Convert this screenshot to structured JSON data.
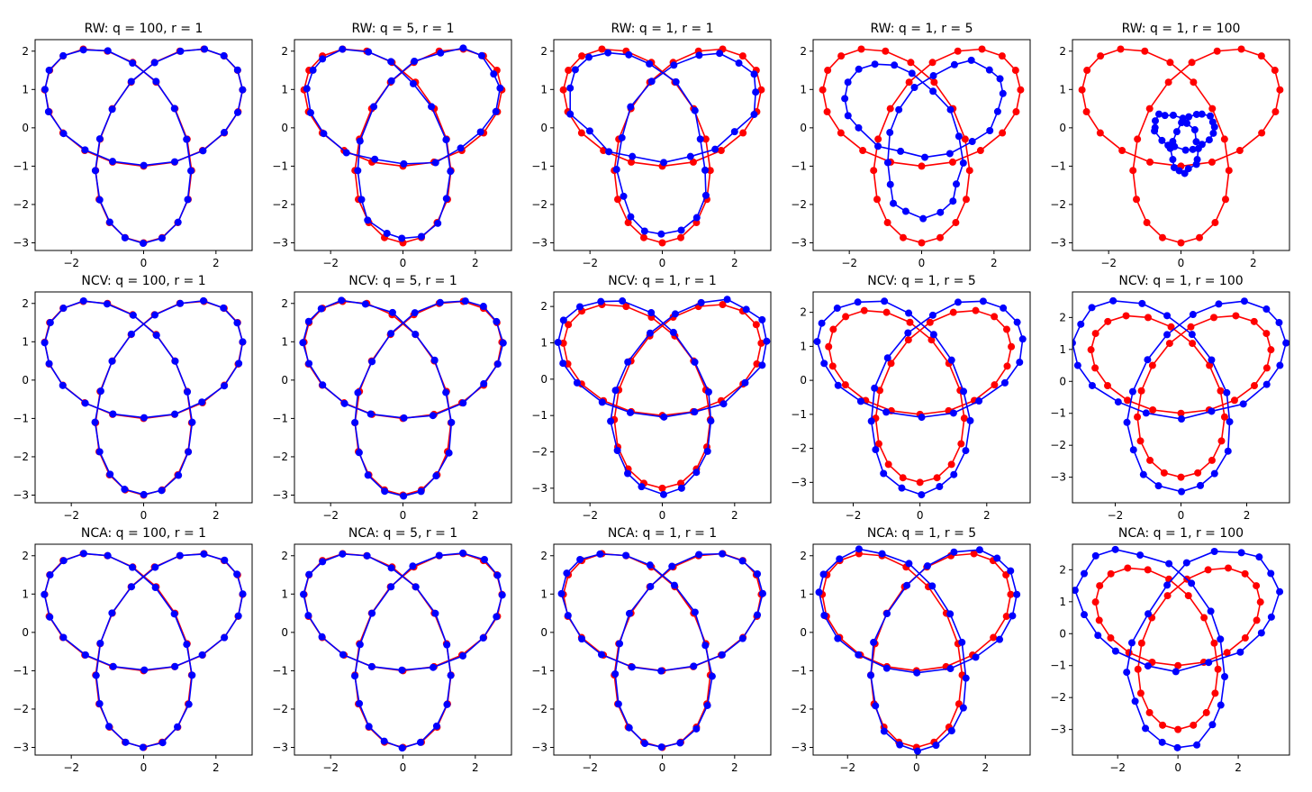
{
  "chart_data": {
    "type": "line",
    "subtype": "trajectory-comparison-grid",
    "layout": {
      "rows": 3,
      "cols": 5
    },
    "grid": false,
    "legend": "none",
    "colors": {
      "truth": "#ff0000",
      "estimate": "#0000ff"
    },
    "markers": "filled-circle",
    "curve": "trefoil",
    "panels": [
      {
        "title": "RW: q = 100, r = 1",
        "model": "RW",
        "q": 100,
        "r": 1,
        "xlim": [
          -3.0,
          3.0
        ],
        "ylim": [
          -3.2,
          2.3
        ],
        "xticks": [
          -2,
          0,
          2
        ],
        "yticks": [
          -3,
          -2,
          -1,
          0,
          1,
          2
        ],
        "estimate": {
          "scale": 1.0,
          "shift_x": 0.0,
          "shift_y": 0.0,
          "noise": 0.02
        }
      },
      {
        "title": "RW: q = 5, r = 1",
        "model": "RW",
        "q": 5,
        "r": 1,
        "xlim": [
          -3.0,
          3.0
        ],
        "ylim": [
          -3.2,
          2.3
        ],
        "xticks": [
          -2,
          0,
          2
        ],
        "yticks": [
          -3,
          -2,
          -1,
          0,
          1,
          2
        ],
        "estimate": {
          "scale": 0.98,
          "shift_x": 0.0,
          "shift_y": 0.0,
          "noise": 0.07
        }
      },
      {
        "title": "RW: q = 1, r = 1",
        "model": "RW",
        "q": 1,
        "r": 1,
        "xlim": [
          -3.0,
          3.0
        ],
        "ylim": [
          -3.2,
          2.3
        ],
        "xticks": [
          -2,
          0,
          2
        ],
        "yticks": [
          -3,
          -2,
          -1,
          0,
          1,
          2
        ],
        "estimate": {
          "scale": 0.94,
          "shift_x": 0.0,
          "shift_y": 0.02,
          "noise": 0.1
        }
      },
      {
        "title": "RW: q = 1, r = 5",
        "model": "RW",
        "q": 1,
        "r": 5,
        "xlim": [
          -3.0,
          3.0
        ],
        "ylim": [
          -3.2,
          2.3
        ],
        "xticks": [
          -2,
          0,
          2
        ],
        "yticks": [
          -3,
          -2,
          -1,
          0,
          1,
          2
        ],
        "estimate": {
          "scale": 0.8,
          "shift_x": 0.05,
          "shift_y": 0.05,
          "noise": 0.08
        }
      },
      {
        "title": "RW: q = 1, r = 100",
        "model": "RW",
        "q": 1,
        "r": 100,
        "xlim": [
          -3.0,
          3.0
        ],
        "ylim": [
          -3.2,
          2.3
        ],
        "xticks": [
          -2,
          0,
          2
        ],
        "yticks": [
          -3,
          -2,
          -1,
          0,
          1,
          2
        ],
        "estimate": {
          "scale": 0.3,
          "shift_x": 0.1,
          "shift_y": -0.25,
          "noise": 0.05
        }
      },
      {
        "title": "NCV: q = 100, r = 1",
        "model": "NCV",
        "q": 100,
        "r": 1,
        "xlim": [
          -3.0,
          3.0
        ],
        "ylim": [
          -3.2,
          2.3
        ],
        "xticks": [
          -2,
          0,
          2
        ],
        "yticks": [
          -3,
          -2,
          -1,
          0,
          1,
          2
        ],
        "estimate": {
          "scale": 1.0,
          "shift_x": 0.0,
          "shift_y": 0.0,
          "noise": 0.02
        }
      },
      {
        "title": "NCV: q = 5, r = 1",
        "model": "NCV",
        "q": 5,
        "r": 1,
        "xlim": [
          -3.0,
          3.0
        ],
        "ylim": [
          -3.2,
          2.3
        ],
        "xticks": [
          -2,
          0,
          2
        ],
        "yticks": [
          -3,
          -2,
          -1,
          0,
          1,
          2
        ],
        "estimate": {
          "scale": 1.01,
          "shift_x": 0.0,
          "shift_y": 0.0,
          "noise": 0.04
        }
      },
      {
        "title": "NCV: q = 1, r = 1",
        "model": "NCV",
        "q": 1,
        "r": 1,
        "xlim": [
          -3.0,
          3.0
        ],
        "ylim": [
          -3.4,
          2.4
        ],
        "xticks": [
          -2,
          0,
          2
        ],
        "yticks": [
          -3,
          -2,
          -1,
          0,
          1,
          2
        ],
        "estimate": {
          "scale": 1.05,
          "shift_x": 0.0,
          "shift_y": 0.0,
          "noise": 0.06
        }
      },
      {
        "title": "NCV: q = 1, r = 5",
        "model": "NCV",
        "q": 1,
        "r": 5,
        "xlim": [
          -3.2,
          3.3
        ],
        "ylim": [
          -3.6,
          2.6
        ],
        "xticks": [
          -2,
          0,
          2
        ],
        "yticks": [
          -3,
          -2,
          -1,
          0,
          1,
          2
        ],
        "estimate": {
          "scale": 1.12,
          "shift_x": 0.0,
          "shift_y": 0.05,
          "noise": 0.06
        }
      },
      {
        "title": "NCV: q = 1, r = 100",
        "model": "NCV",
        "q": 1,
        "r": 100,
        "xlim": [
          -3.3,
          3.3
        ],
        "ylim": [
          -3.8,
          2.8
        ],
        "xticks": [
          -2,
          0,
          2
        ],
        "yticks": [
          -3,
          -2,
          -1,
          0,
          1,
          2
        ],
        "estimate": {
          "scale": 1.18,
          "shift_x": -0.05,
          "shift_y": 0.05,
          "noise": 0.07
        }
      },
      {
        "title": "NCA: q = 100, r = 1",
        "model": "NCA",
        "q": 100,
        "r": 1,
        "xlim": [
          -3.0,
          3.0
        ],
        "ylim": [
          -3.2,
          2.3
        ],
        "xticks": [
          -2,
          0,
          2
        ],
        "yticks": [
          -3,
          -2,
          -1,
          0,
          1,
          2
        ],
        "estimate": {
          "scale": 1.0,
          "shift_x": 0.0,
          "shift_y": 0.0,
          "noise": 0.02
        }
      },
      {
        "title": "NCA: q = 5, r = 1",
        "model": "NCA",
        "q": 5,
        "r": 1,
        "xlim": [
          -3.0,
          3.0
        ],
        "ylim": [
          -3.2,
          2.3
        ],
        "xticks": [
          -2,
          0,
          2
        ],
        "yticks": [
          -3,
          -2,
          -1,
          0,
          1,
          2
        ],
        "estimate": {
          "scale": 1.0,
          "shift_x": 0.0,
          "shift_y": 0.0,
          "noise": 0.03
        }
      },
      {
        "title": "NCA: q = 1, r = 1",
        "model": "NCA",
        "q": 1,
        "r": 1,
        "xlim": [
          -3.0,
          3.0
        ],
        "ylim": [
          -3.2,
          2.3
        ],
        "xticks": [
          -2,
          0,
          2
        ],
        "yticks": [
          -3,
          -2,
          -1,
          0,
          1,
          2
        ],
        "estimate": {
          "scale": 1.01,
          "shift_x": 0.0,
          "shift_y": 0.0,
          "noise": 0.04
        }
      },
      {
        "title": "NCA: q = 1, r = 5",
        "model": "NCA",
        "q": 1,
        "r": 5,
        "xlim": [
          -3.0,
          3.3
        ],
        "ylim": [
          -3.2,
          2.3
        ],
        "xticks": [
          -2,
          0,
          2
        ],
        "yticks": [
          -3,
          -2,
          -1,
          0,
          1,
          2
        ],
        "estimate": {
          "scale": 1.04,
          "shift_x": 0.05,
          "shift_y": 0.0,
          "noise": 0.05
        }
      },
      {
        "title": "NCA: q = 1, r = 100",
        "model": "NCA",
        "q": 1,
        "r": 100,
        "xlim": [
          -3.5,
          3.7
        ],
        "ylim": [
          -3.8,
          2.8
        ],
        "xticks": [
          -2,
          0,
          2
        ],
        "yticks": [
          -3,
          -2,
          -1,
          0,
          1,
          2
        ],
        "estimate": {
          "scale": 1.22,
          "shift_x": 0.0,
          "shift_y": 0.1,
          "noise": 0.1
        }
      }
    ]
  }
}
